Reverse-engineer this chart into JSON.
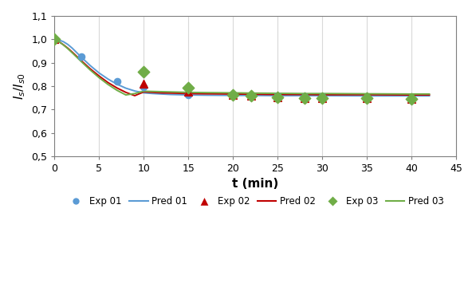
{
  "exp01_x": [
    0,
    3,
    7,
    10,
    15,
    20,
    22,
    25,
    28,
    30,
    35,
    40
  ],
  "exp01_y": [
    1.0,
    0.925,
    0.82,
    0.795,
    0.762,
    0.762,
    0.76,
    0.758,
    0.757,
    0.756,
    0.752,
    0.75
  ],
  "pred01_x": [
    0,
    0.5,
    1,
    1.5,
    2,
    3,
    4,
    5,
    6,
    7,
    8,
    9,
    10,
    11,
    12,
    13,
    14,
    15,
    17,
    20,
    22,
    25,
    28,
    30,
    35,
    40,
    42
  ],
  "pred01_y": [
    1.0,
    0.997,
    0.99,
    0.978,
    0.962,
    0.924,
    0.888,
    0.856,
    0.83,
    0.808,
    0.791,
    0.779,
    0.771,
    0.768,
    0.766,
    0.764,
    0.763,
    0.762,
    0.761,
    0.76,
    0.76,
    0.759,
    0.759,
    0.759,
    0.758,
    0.758,
    0.758
  ],
  "exp02_x": [
    0,
    10,
    15,
    20,
    22,
    25,
    28,
    30,
    35,
    40
  ],
  "exp02_y": [
    1.0,
    0.81,
    0.775,
    0.762,
    0.758,
    0.752,
    0.75,
    0.75,
    0.748,
    0.746
  ],
  "pred02_x": [
    0,
    0.5,
    1,
    1.5,
    2,
    3,
    4,
    5,
    6,
    7,
    8,
    9,
    10,
    11,
    12,
    13,
    14,
    15,
    17,
    20,
    22,
    25,
    28,
    30,
    35,
    40,
    42
  ],
  "pred02_y": [
    1.0,
    0.99,
    0.977,
    0.962,
    0.945,
    0.909,
    0.874,
    0.843,
    0.815,
    0.792,
    0.773,
    0.759,
    0.775,
    0.773,
    0.771,
    0.77,
    0.769,
    0.768,
    0.767,
    0.766,
    0.765,
    0.764,
    0.764,
    0.763,
    0.763,
    0.762,
    0.762
  ],
  "exp03_x": [
    0,
    10,
    15,
    20,
    22,
    25,
    28,
    30,
    35,
    40
  ],
  "exp03_y": [
    1.0,
    0.862,
    0.793,
    0.762,
    0.76,
    0.751,
    0.749,
    0.748,
    0.747,
    0.745
  ],
  "pred03_x": [
    0,
    0.5,
    1,
    1.5,
    2,
    3,
    4,
    5,
    6,
    7,
    8,
    9,
    10,
    11,
    12,
    13,
    14,
    15,
    17,
    20,
    22,
    25,
    28,
    30,
    35,
    40,
    42
  ],
  "pred03_y": [
    1.0,
    0.99,
    0.976,
    0.96,
    0.942,
    0.905,
    0.869,
    0.836,
    0.807,
    0.782,
    0.762,
    0.768,
    0.778,
    0.777,
    0.776,
    0.775,
    0.774,
    0.773,
    0.772,
    0.771,
    0.77,
    0.769,
    0.768,
    0.768,
    0.767,
    0.766,
    0.766
  ],
  "color01": "#5b9bd5",
  "color02": "#c00000",
  "color03": "#70ad47",
  "xlim": [
    0,
    45
  ],
  "ylim": [
    0.5,
    1.1
  ],
  "xticks": [
    0,
    5,
    10,
    15,
    20,
    25,
    30,
    35,
    40,
    45
  ],
  "yticks": [
    0.5,
    0.6,
    0.7,
    0.8,
    0.9,
    1.0,
    1.1
  ],
  "ytick_labels": [
    "0,5",
    "0,6",
    "0,7",
    "0,8",
    "0,9",
    "1,0",
    "1,1"
  ],
  "xtick_labels": [
    "0",
    "5",
    "10",
    "15",
    "20",
    "25",
    "30",
    "35",
    "40",
    "45"
  ],
  "xlabel": "t (min)",
  "ylabel": "I_s / I_s0",
  "plot_bg": "#ffffff",
  "fig_bg": "#ffffff",
  "grid_color": "#d9d9d9"
}
